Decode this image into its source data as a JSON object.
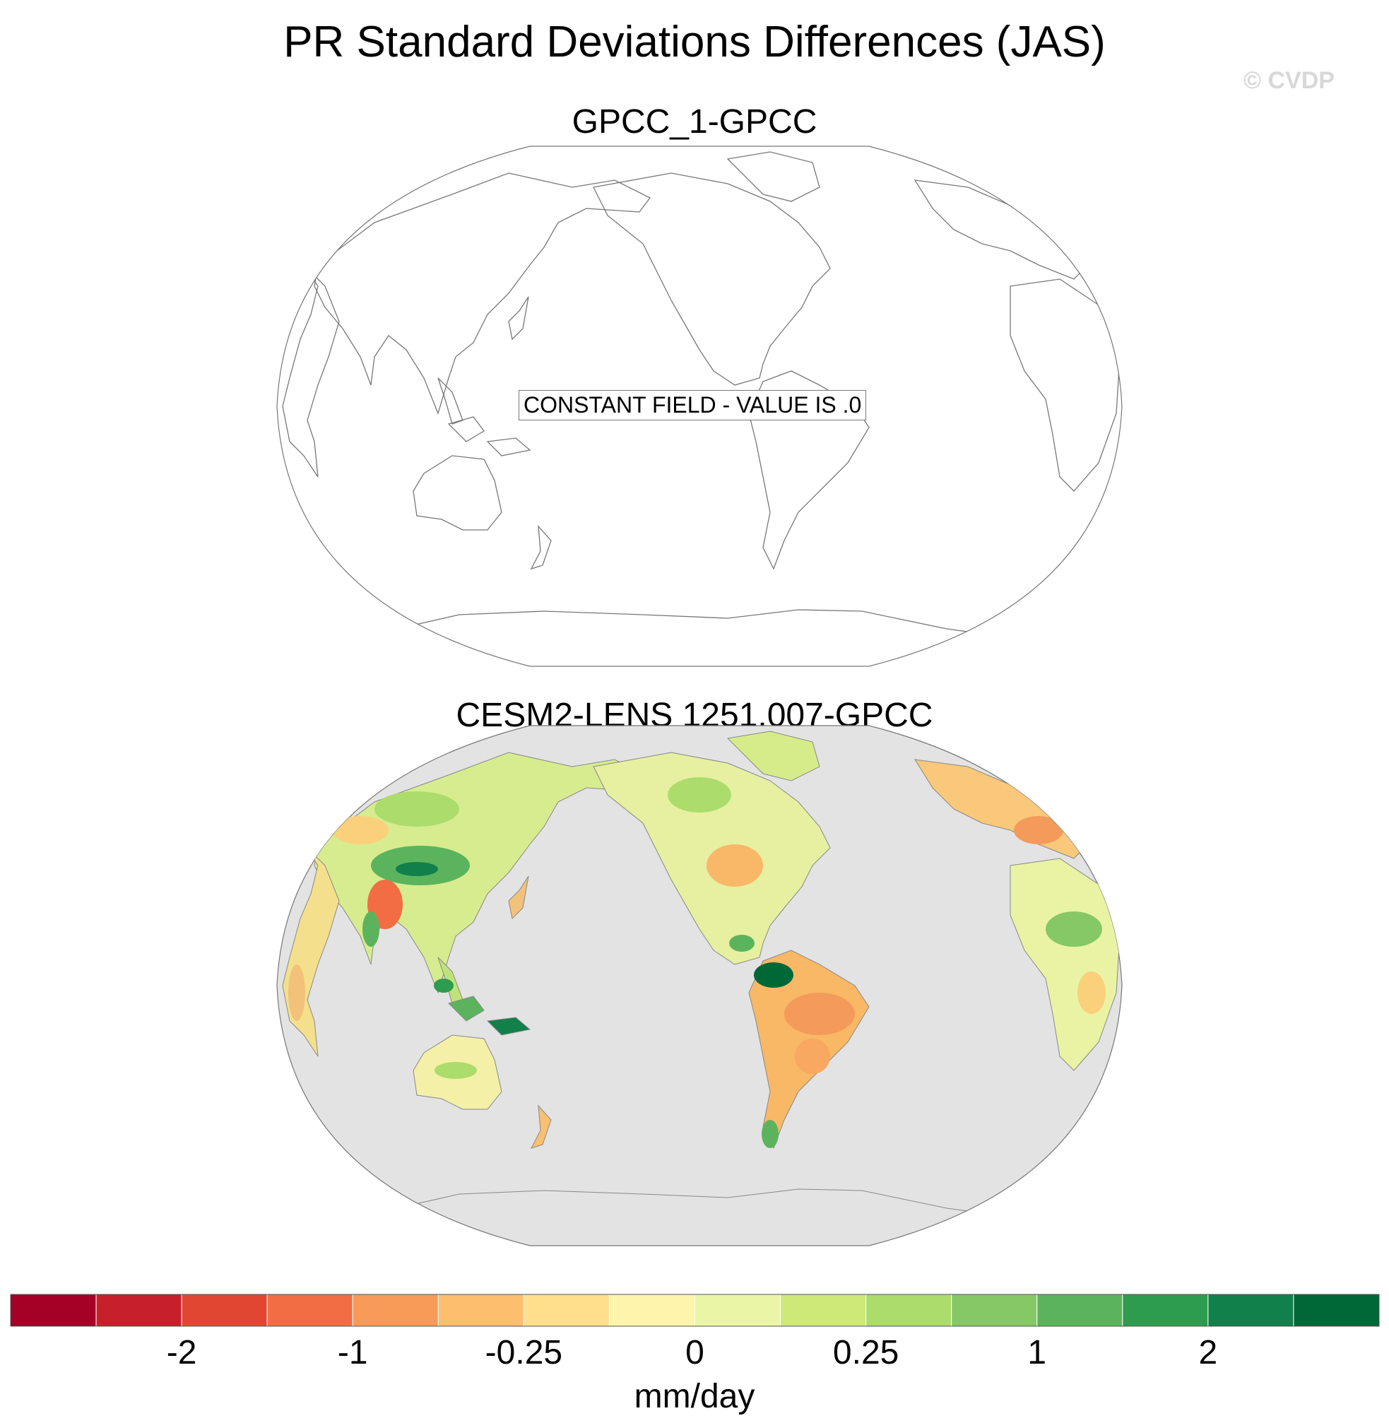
{
  "title": "PR Standard Deviations Differences (JAS)",
  "watermark": "© CVDP",
  "panels": [
    {
      "title": "GPCC_1-GPCC",
      "annotation": "CONSTANT FIELD - VALUE IS .0",
      "ocean_color": "#ffffff"
    },
    {
      "title": "CESM2-LENS 1251.007-GPCC",
      "ocean_color": "#e3e3e3"
    }
  ],
  "chart_data": {
    "type": "heatmap",
    "title": "PR Standard Deviations Differences (JAS)",
    "projection": "Robinson, centered on Pacific",
    "colorbar": {
      "units": "mm/day",
      "tick_labels": [
        "-2",
        "-1",
        "-0.25",
        "0",
        "0.25",
        "1",
        "2"
      ],
      "colors": [
        "#a50026",
        "#c8202a",
        "#e04632",
        "#f26d43",
        "#f89a58",
        "#fdbe6d",
        "#fddf8c",
        "#fef4ac",
        "#eaf6a6",
        "#cde977",
        "#acdc6c",
        "#86c865",
        "#5bb45d",
        "#2e9c4e",
        "#11804a",
        "#006837"
      ]
    },
    "panel_values": [
      {
        "panel": "GPCC_1-GPCC",
        "field": "constant",
        "value": 0.0
      },
      {
        "panel": "CESM2-LENS 1251.007-GPCC",
        "field": "spatial",
        "regions": [
          {
            "region": "Amazon basin",
            "approx_value": -0.5
          },
          {
            "region": "Eastern Brazil",
            "approx_value": -0.5
          },
          {
            "region": "Northern South America / Colombia",
            "approx_value": 2.0
          },
          {
            "region": "India / Himalaya foothills",
            "approx_value": -1.0
          },
          {
            "region": "Tibetan Plateau",
            "approx_value": 1.0
          },
          {
            "region": "Maritime Continent",
            "approx_value": 1.0
          },
          {
            "region": "Australia",
            "approx_value": 0.25
          },
          {
            "region": "Central USA",
            "approx_value": -0.5
          },
          {
            "region": "Central America",
            "approx_value": 1.0
          },
          {
            "region": "Sahel / West Africa",
            "approx_value": 0.5
          },
          {
            "region": "Europe",
            "approx_value": -0.25
          }
        ]
      }
    ]
  }
}
